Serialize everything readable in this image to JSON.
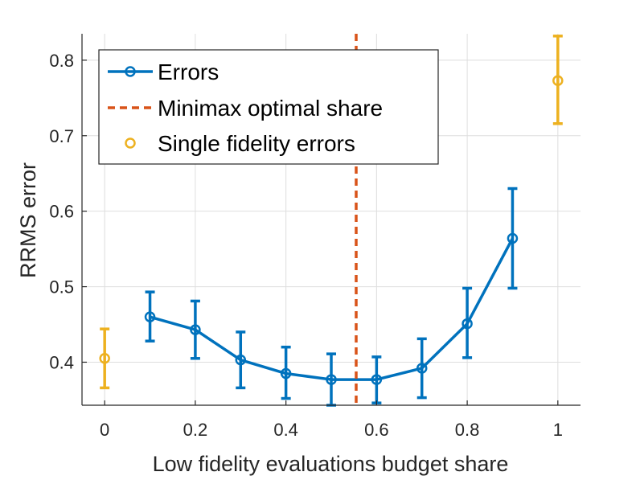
{
  "chart_data": {
    "type": "line",
    "title": "",
    "xlabel": "Low fidelity evaluations budget share",
    "ylabel": "RRMS error",
    "xlim": [
      -0.05,
      1.05
    ],
    "ylim": [
      0.343,
      0.835
    ],
    "xticks": [
      0,
      0.2,
      0.4,
      0.6,
      0.8,
      1
    ],
    "xtick_labels": [
      "0",
      "0.2",
      "0.4",
      "0.6",
      "0.8",
      "1"
    ],
    "yticks": [
      0.4,
      0.5,
      0.6,
      0.7,
      0.8
    ],
    "ytick_labels": [
      "0.4",
      "0.5",
      "0.6",
      "0.7",
      "0.8"
    ],
    "grid": true,
    "legend_position": "top-left",
    "series": [
      {
        "name": "Errors",
        "style": "line-marker-errorbar",
        "color": "#0072BD",
        "x": [
          0.1,
          0.2,
          0.3,
          0.4,
          0.5,
          0.6,
          0.7,
          0.8,
          0.9
        ],
        "y": [
          0.46,
          0.443,
          0.403,
          0.385,
          0.377,
          0.377,
          0.392,
          0.451,
          0.564
        ],
        "err_low": [
          0.428,
          0.405,
          0.366,
          0.352,
          0.343,
          0.346,
          0.353,
          0.406,
          0.498
        ],
        "err_high": [
          0.493,
          0.481,
          0.44,
          0.42,
          0.411,
          0.407,
          0.431,
          0.498,
          0.63
        ]
      },
      {
        "name": "Minimax optimal share",
        "style": "vertical-dashed-line",
        "color": "#D95319",
        "x_value": 0.555
      },
      {
        "name": "Single fidelity errors",
        "style": "marker-errorbar",
        "color": "#EDB120",
        "x": [
          0,
          1
        ],
        "y": [
          0.405,
          0.773
        ],
        "err_low": [
          0.366,
          0.716
        ],
        "err_high": [
          0.444,
          0.832
        ]
      }
    ]
  }
}
